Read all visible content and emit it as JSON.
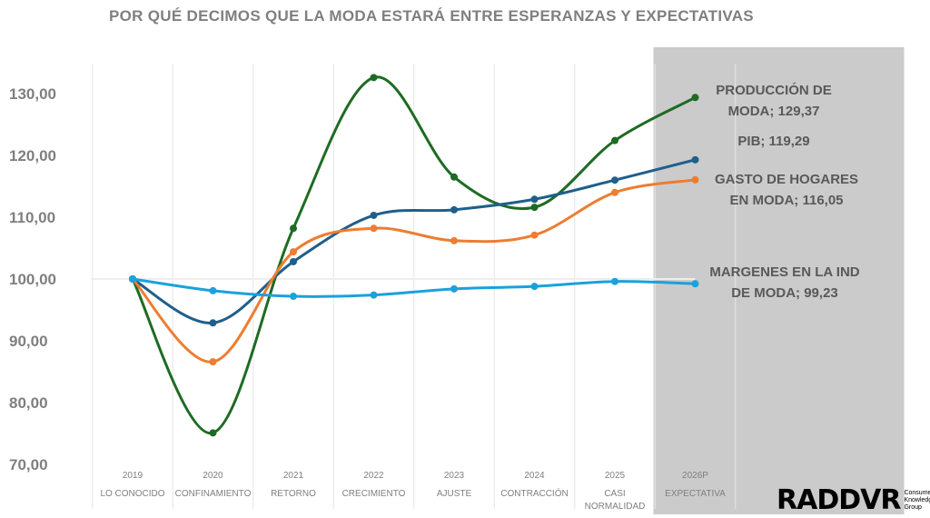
{
  "chart_data": {
    "type": "line",
    "title": "POR QUÉ DECIMOS QUE LA MODA ESTARÁ ENTRE ESPERANZAS Y EXPECTATIVAS",
    "categories": [
      "2019",
      "2020",
      "2021",
      "2022",
      "2023",
      "2024",
      "2025",
      "2026P"
    ],
    "category_sublabels": [
      "LO CONOCIDO",
      "CONFINAMIENTO",
      "RETORNO",
      "CRECIMIENTO",
      "AJUSTE",
      "CONTRACCIÓN",
      "CASI NORMALIDAD",
      "EXPECTATIVA"
    ],
    "ylim": [
      70,
      135
    ],
    "yticks": [
      "70,00",
      "80,00",
      "90,00",
      "100,00",
      "110,00",
      "120,00",
      "130,00"
    ],
    "ytick_values": [
      70,
      80,
      90,
      100,
      110,
      120,
      130
    ],
    "grid": "vertical",
    "highlight_category": "2026P",
    "series": [
      {
        "name": "PRODUCCIÓN DE MODA",
        "color": "#1e6b23",
        "values": [
          100,
          75.1,
          108.2,
          132.6,
          116.5,
          111.6,
          122.4,
          129.37
        ],
        "label_lines": [
          "PRODUCCIÓN DE",
          "MODA;  129,37"
        ]
      },
      {
        "name": "PIB",
        "color": "#1f5f8b",
        "values": [
          100,
          92.9,
          102.8,
          110.3,
          111.2,
          112.9,
          116.0,
          119.29
        ],
        "label_lines": [
          "PIB;  119,29"
        ]
      },
      {
        "name": "GASTO DE HOGARES EN MODA",
        "color": "#ed7d31",
        "values": [
          100,
          86.6,
          104.4,
          108.2,
          106.2,
          107.1,
          114.0,
          116.05
        ],
        "label_lines": [
          "GASTO DE HOGARES",
          "EN MODA;  116,05"
        ]
      },
      {
        "name": "MARGENES EN LA IND DE MODA",
        "color": "#1ba1dc",
        "values": [
          100,
          98.1,
          97.2,
          97.4,
          98.4,
          98.8,
          99.6,
          99.23
        ],
        "label_lines": [
          "MARGENES EN LA IND",
          "DE MODA;  99,23"
        ]
      }
    ]
  },
  "logo": {
    "mark": "RADDVR",
    "sub": "Consumer Knowledge Group"
  }
}
